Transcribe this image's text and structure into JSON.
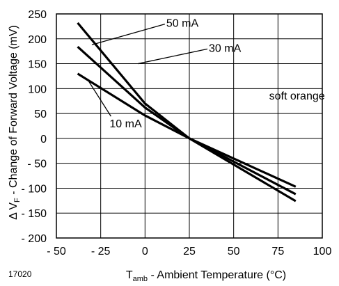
{
  "figure_id": "17020",
  "chart_data": {
    "type": "line",
    "xlabel_main": "T",
    "xlabel_sub": "amb",
    "xlabel_rest": " - Ambient Temperature (°C)",
    "ylabel_main": "Δ V",
    "ylabel_sub": "F",
    "ylabel_rest": " - Change of Forward Voltage (mV)",
    "xlim": [
      -50,
      100
    ],
    "ylim": [
      -200,
      250
    ],
    "x_ticks": [
      -50,
      -25,
      0,
      25,
      50,
      75,
      100
    ],
    "x_tick_labels": [
      "- 50",
      "- 25",
      "0",
      "25",
      "50",
      "75",
      "100"
    ],
    "y_ticks": [
      250,
      200,
      150,
      100,
      50,
      0,
      -50,
      -100,
      -150,
      -200
    ],
    "y_tick_labels": [
      "250",
      "200",
      "150",
      "100",
      "50",
      "0",
      "- 50",
      "- 100",
      "- 150",
      "- 200"
    ],
    "grid": true,
    "series": [
      {
        "name": "50 mA",
        "x": [
          -38,
          0,
          25,
          85
        ],
        "y": [
          232,
          70,
          0,
          -126
        ]
      },
      {
        "name": "30 mA",
        "x": [
          -38,
          0,
          25,
          85
        ],
        "y": [
          184,
          62,
          0,
          -112
        ]
      },
      {
        "name": "10 mA",
        "x": [
          -38,
          0,
          25,
          85
        ],
        "y": [
          130,
          46,
          0,
          -97
        ]
      }
    ],
    "annotations": [
      {
        "text": "50 mA",
        "series": "50 mA",
        "x": 12,
        "y": 224,
        "leader_to": [
          -30,
          188
        ]
      },
      {
        "text": "30 mA",
        "series": "30 mA",
        "x": 36,
        "y": 174,
        "leader_to": [
          -4,
          150
        ]
      },
      {
        "text": "10 mA",
        "series": "10 mA",
        "x": -20,
        "y": 22,
        "leader_to": [
          -32,
          116
        ]
      },
      {
        "text": "soft orange",
        "x": 70,
        "y": 78
      }
    ]
  }
}
